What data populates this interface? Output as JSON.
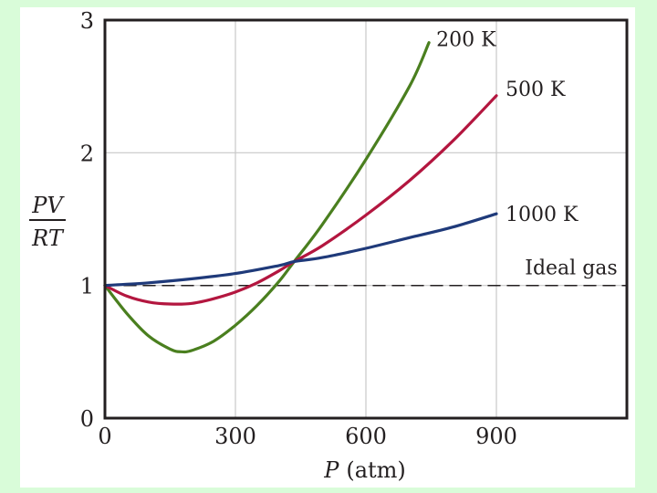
{
  "chart_data": {
    "type": "line",
    "title": "",
    "xlabel_var": "P",
    "xlabel_unit": "(atm)",
    "ylabel_numerator": "PV",
    "ylabel_denominator": "RT",
    "xlim": [
      0,
      1200
    ],
    "ylim": [
      0,
      3
    ],
    "x_ticks": [
      {
        "value": 0,
        "label": "0"
      },
      {
        "value": 300,
        "label": "300"
      },
      {
        "value": 600,
        "label": "600"
      },
      {
        "value": 900,
        "label": "900"
      }
    ],
    "y_ticks": [
      {
        "value": 0,
        "label": "0"
      },
      {
        "value": 1,
        "label": "1"
      },
      {
        "value": 2,
        "label": "2"
      },
      {
        "value": 3,
        "label": "3"
      }
    ],
    "grid": true,
    "series": [
      {
        "name": "200 K",
        "color": "#4a7f1f",
        "points": [
          [
            0,
            1.0
          ],
          [
            50,
            0.79
          ],
          [
            100,
            0.62
          ],
          [
            150,
            0.52
          ],
          [
            175,
            0.5
          ],
          [
            200,
            0.51
          ],
          [
            250,
            0.58
          ],
          [
            300,
            0.7
          ],
          [
            350,
            0.85
          ],
          [
            400,
            1.03
          ],
          [
            435,
            1.18
          ],
          [
            500,
            1.46
          ],
          [
            600,
            1.95
          ],
          [
            700,
            2.5
          ],
          [
            745,
            2.83
          ]
        ]
      },
      {
        "name": "500 K",
        "color": "#b3163f",
        "points": [
          [
            0,
            1.0
          ],
          [
            50,
            0.92
          ],
          [
            100,
            0.875
          ],
          [
            150,
            0.86
          ],
          [
            200,
            0.865
          ],
          [
            250,
            0.9
          ],
          [
            300,
            0.95
          ],
          [
            350,
            1.02
          ],
          [
            400,
            1.11
          ],
          [
            435,
            1.18
          ],
          [
            500,
            1.3
          ],
          [
            600,
            1.53
          ],
          [
            700,
            1.79
          ],
          [
            800,
            2.09
          ],
          [
            900,
            2.43
          ]
        ]
      },
      {
        "name": "1000 K",
        "color": "#1f3a7a",
        "points": [
          [
            0,
            1.0
          ],
          [
            100,
            1.02
          ],
          [
            200,
            1.05
          ],
          [
            300,
            1.09
          ],
          [
            400,
            1.15
          ],
          [
            435,
            1.18
          ],
          [
            500,
            1.21
          ],
          [
            600,
            1.28
          ],
          [
            700,
            1.36
          ],
          [
            800,
            1.44
          ],
          [
            900,
            1.54
          ]
        ]
      },
      {
        "name": "Ideal gas",
        "color": "#231f20",
        "dashed": true,
        "points": [
          [
            0,
            1.0
          ],
          [
            1200,
            1.0
          ]
        ]
      }
    ],
    "series_labels": [
      {
        "series": "200 K",
        "anchor_x": 745,
        "anchor_y": 2.83
      },
      {
        "series": "500 K",
        "anchor_x": 900,
        "anchor_y": 2.43
      },
      {
        "series": "1000 K",
        "anchor_x": 900,
        "anchor_y": 1.54
      },
      {
        "series": "Ideal gas",
        "anchor_x": 1170,
        "anchor_y": 1.0
      }
    ]
  },
  "colors": {
    "background": "#d9fcd9",
    "panel": "#ffffff",
    "axis": "#231f20",
    "grid": "#c8c8c8"
  }
}
